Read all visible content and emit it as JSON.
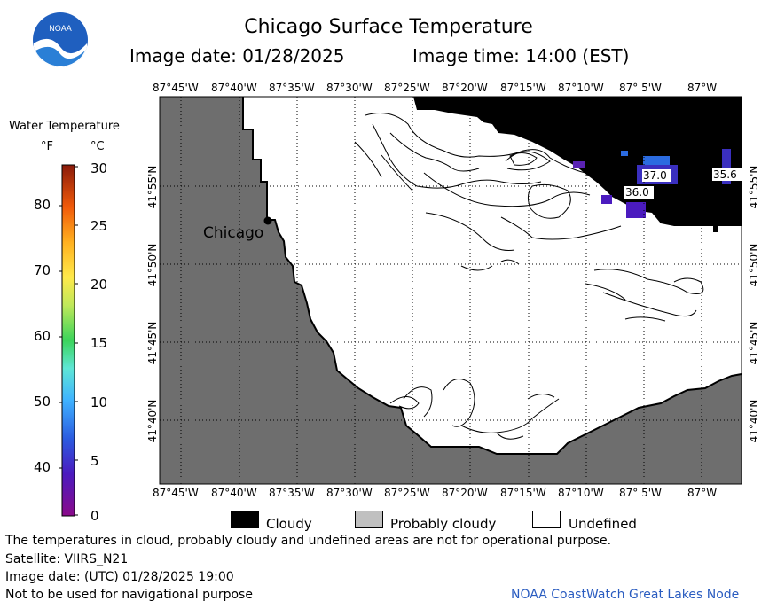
{
  "logo": {
    "text": "NOAA",
    "icon": "noaa-logo-icon"
  },
  "header": {
    "title": "Chicago Surface Temperature",
    "image_date": "Image date: 01/28/2025",
    "image_time": "Image time: 14:00 (EST)"
  },
  "colorbar": {
    "title": "Water Temperature",
    "unit_f": "°F",
    "unit_c": "°C",
    "f_ticks": [
      "80",
      "70",
      "60",
      "50",
      "40"
    ],
    "c_ticks": [
      "30",
      "25",
      "20",
      "15",
      "10",
      "5",
      "0"
    ]
  },
  "axes": {
    "lon_ticks": [
      "87°45'W",
      "87°40'W",
      "87°35'W",
      "87°30'W",
      "87°25'W",
      "87°20'W",
      "87°15'W",
      "87°10'W",
      "87° 5'W",
      "87°W"
    ],
    "lat_ticks": [
      "41°55'N",
      "41°50'N",
      "41°45'N",
      "41°40'N"
    ]
  },
  "map": {
    "city_label": "Chicago",
    "temp_labels": [
      "37.0",
      "36.0",
      "35.6"
    ],
    "colors": {
      "land": "#6e6e6e",
      "cloud": "#000000",
      "water": "#ffffff",
      "cold_water": "#3a2fbf",
      "cold_water2": "#2b6be0"
    }
  },
  "legend": {
    "cloudy": "Cloudy",
    "probably_cloudy": "Probably cloudy",
    "undefined": "Undefined",
    "colors": {
      "cloudy": "#000000",
      "probably_cloudy": "#c0c0c0",
      "undefined": "#ffffff"
    }
  },
  "footer": {
    "disclaimer": "The temperatures in cloud, probably cloudy and undefined areas are not for operational purpose.",
    "satellite": "Satellite: VIIRS_N21",
    "utc_date": "Image date: (UTC) 01/28/2025  19:00",
    "nav_warning": "Not to be used for navigational purpose",
    "credit": "NOAA CoastWatch Great Lakes Node"
  }
}
